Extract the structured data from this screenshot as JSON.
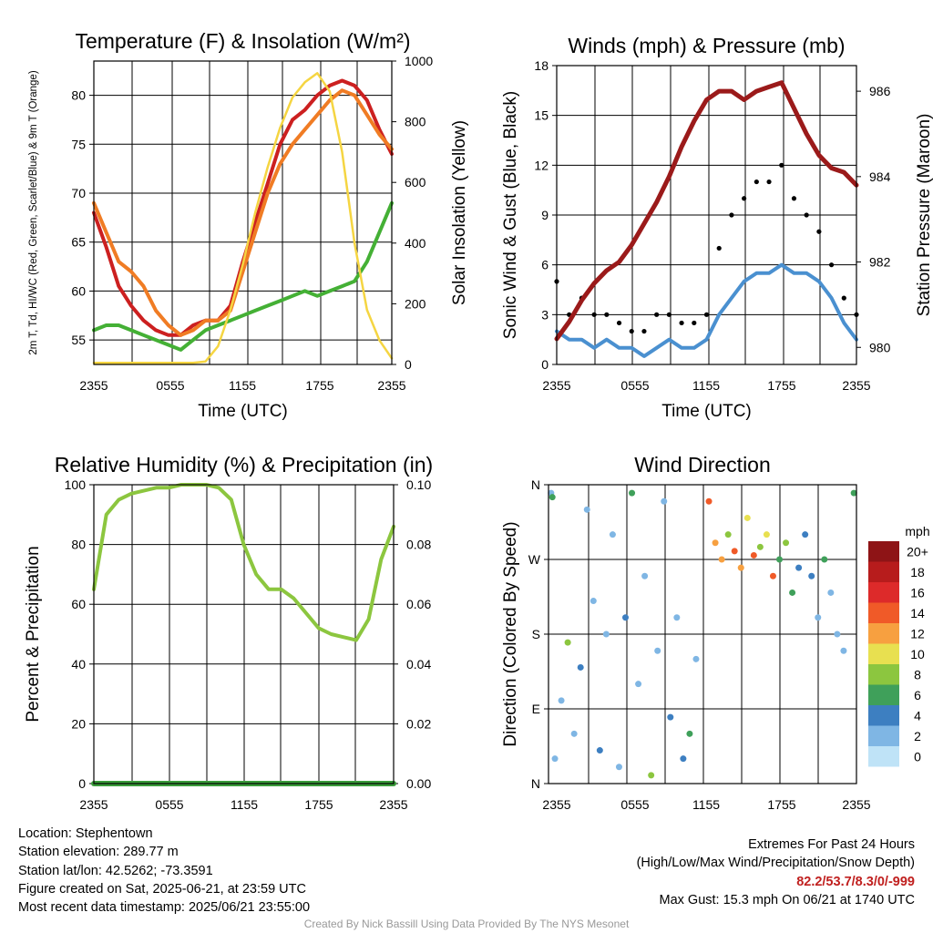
{
  "chart_data": [
    {
      "type": "line",
      "title": "Temperature (F) & Insolation (W/m²)",
      "xlabel": "Time (UTC)",
      "ylabel": "2m T, Td, HI/WC (Red, Green, Scarlet/Blue) & 9m T (Orange)",
      "ylabel_right": "Solar Insolation (Yellow)",
      "x_ticks": [
        "2355",
        "0555",
        "1155",
        "1755",
        "2355"
      ],
      "y_ticks": [
        55,
        60,
        65,
        70,
        75,
        80
      ],
      "y2_ticks": [
        0,
        200,
        400,
        600,
        800,
        1000
      ],
      "ylim": [
        52.5,
        83.5
      ],
      "y2lim": [
        0,
        1000
      ],
      "grid": true,
      "x_hours": [
        0,
        1,
        2,
        3,
        4,
        5,
        6,
        7,
        8,
        9,
        10,
        11,
        12,
        13,
        14,
        15,
        16,
        17,
        18,
        19,
        20,
        21,
        22,
        23,
        24
      ],
      "series": [
        {
          "name": "2m T",
          "color": "#cc2020",
          "axis": "left",
          "values": [
            68,
            64.5,
            60.5,
            58.5,
            57,
            56,
            55.5,
            55.5,
            56.5,
            57,
            57,
            58.5,
            63,
            67,
            71,
            75,
            77.5,
            78.5,
            80,
            81,
            81.5,
            81,
            79.5,
            76.5,
            74
          ]
        },
        {
          "name": "9m T",
          "color": "#f07c24",
          "axis": "left",
          "values": [
            69,
            66,
            63,
            62,
            60.5,
            58,
            56.5,
            55.5,
            56,
            57,
            57,
            58,
            62,
            66,
            70,
            73,
            75,
            76.5,
            78,
            79.5,
            80.5,
            80,
            78,
            76,
            74.5
          ]
        },
        {
          "name": "Td",
          "color": "#44b035",
          "axis": "left",
          "values": [
            56,
            56.5,
            56.5,
            56,
            55.5,
            55,
            54.5,
            54,
            55,
            56,
            56.5,
            57,
            57.5,
            58,
            58.5,
            59,
            59.5,
            60,
            59.5,
            60,
            60.5,
            61,
            63,
            66,
            69
          ]
        },
        {
          "name": "Solar Insolation",
          "color": "#f5d542",
          "axis": "right",
          "values": [
            5,
            5,
            5,
            5,
            5,
            5,
            5,
            5,
            5,
            10,
            60,
            180,
            330,
            500,
            650,
            780,
            880,
            930,
            960,
            900,
            700,
            400,
            180,
            80,
            20
          ]
        }
      ]
    },
    {
      "type": "line",
      "title": "Winds (mph) & Pressure (mb)",
      "xlabel": "Time (UTC)",
      "ylabel": "Sonic Wind & Gust (Blue, Black)",
      "ylabel_right": "Station Pressure (Maroon)",
      "x_ticks": [
        "2355",
        "0555",
        "1155",
        "1755",
        "2355"
      ],
      "y_ticks": [
        0,
        3,
        6,
        9,
        12,
        15,
        18
      ],
      "y2_ticks": [
        980,
        982,
        984,
        986
      ],
      "ylim": [
        0,
        18
      ],
      "y2lim": [
        979.6,
        986.6
      ],
      "grid": true,
      "x_hours": [
        0,
        1,
        2,
        3,
        4,
        5,
        6,
        7,
        8,
        9,
        10,
        11,
        12,
        13,
        14,
        15,
        16,
        17,
        18,
        19,
        20,
        21,
        22,
        23,
        24
      ],
      "series": [
        {
          "name": "Station Pressure",
          "color": "#9b1a1a",
          "axis": "right",
          "values": [
            980.2,
            980.6,
            981.1,
            981.5,
            981.8,
            982.0,
            982.4,
            982.9,
            983.4,
            984.0,
            984.7,
            985.3,
            985.8,
            986.0,
            986.0,
            985.8,
            986.0,
            986.1,
            986.2,
            985.6,
            985.0,
            984.5,
            984.2,
            984.1,
            983.8
          ]
        },
        {
          "name": "Sonic Wind",
          "color": "#4a90d0",
          "axis": "left",
          "values": [
            2,
            1.5,
            1.5,
            1.0,
            1.5,
            1.0,
            1.0,
            0.5,
            1.0,
            1.5,
            1.0,
            1.0,
            1.5,
            3,
            4,
            5,
            5.5,
            5.5,
            6,
            5.5,
            5.5,
            5,
            4,
            2.5,
            1.5
          ]
        },
        {
          "name": "Gust",
          "color": "#000000",
          "axis": "left",
          "values": [
            5,
            3,
            4,
            3,
            3,
            2.5,
            2,
            2,
            3,
            3,
            2.5,
            2.5,
            3,
            7,
            9,
            10,
            11,
            11,
            12,
            10,
            9,
            8,
            6,
            4,
            3
          ]
        }
      ]
    },
    {
      "type": "line",
      "title": "Relative Humidity (%) & Precipitation (in)",
      "xlabel": "",
      "ylabel": "Percent & Precipitation",
      "x_ticks": [
        "2355",
        "0555",
        "1155",
        "1755",
        "2355"
      ],
      "y_ticks": [
        0,
        20,
        40,
        60,
        80,
        100
      ],
      "y2_ticks": [
        "0.00",
        "0.02",
        "0.04",
        "0.06",
        "0.08",
        "0.10"
      ],
      "ylim": [
        0,
        100
      ],
      "y2lim": [
        0,
        0.1
      ],
      "grid": true,
      "x_hours": [
        0,
        1,
        2,
        3,
        4,
        5,
        6,
        7,
        8,
        9,
        10,
        11,
        12,
        13,
        14,
        15,
        16,
        17,
        18,
        19,
        20,
        21,
        22,
        23,
        24
      ],
      "series": [
        {
          "name": "Relative Humidity",
          "color": "#8cc63f",
          "axis": "left",
          "values": [
            65,
            90,
            95,
            97,
            98,
            99,
            99,
            100,
            100,
            100,
            99,
            95,
            80,
            70,
            65,
            65,
            62,
            57,
            52,
            50,
            49,
            48,
            55,
            75,
            86
          ]
        },
        {
          "name": "Precipitation",
          "color": "#3a9b3a",
          "axis": "right",
          "values": [
            0,
            0,
            0,
            0,
            0,
            0,
            0,
            0,
            0,
            0,
            0,
            0,
            0,
            0,
            0,
            0,
            0,
            0,
            0,
            0,
            0,
            0,
            0,
            0,
            0
          ]
        }
      ]
    },
    {
      "type": "scatter",
      "title": "Wind Direction",
      "ylabel": "Direction (Colored By Speed)",
      "x_ticks": [
        "2355",
        "0555",
        "1155",
        "1755",
        "2355"
      ],
      "y_ticks": [
        "N",
        "E",
        "S",
        "W",
        "N"
      ],
      "ylim": [
        0,
        360
      ],
      "grid": true,
      "points": [
        [
          0.2,
          350,
          1
        ],
        [
          0.3,
          345,
          3
        ],
        [
          0.5,
          30,
          1
        ],
        [
          1.0,
          100,
          1
        ],
        [
          1.5,
          170,
          4
        ],
        [
          2.0,
          60,
          1
        ],
        [
          2.5,
          140,
          2
        ],
        [
          3.0,
          330,
          1
        ],
        [
          3.5,
          220,
          1
        ],
        [
          4.0,
          40,
          2
        ],
        [
          4.5,
          180,
          1
        ],
        [
          5.0,
          300,
          1
        ],
        [
          5.5,
          20,
          1
        ],
        [
          6.0,
          200,
          2
        ],
        [
          6.5,
          350,
          3
        ],
        [
          7.0,
          120,
          1
        ],
        [
          7.5,
          250,
          1
        ],
        [
          8.0,
          10,
          4
        ],
        [
          8.5,
          160,
          1
        ],
        [
          9.0,
          340,
          1
        ],
        [
          9.5,
          80,
          2
        ],
        [
          10.0,
          200,
          1
        ],
        [
          10.5,
          30,
          2
        ],
        [
          11.0,
          60,
          3
        ],
        [
          11.5,
          150,
          1
        ],
        [
          12.5,
          340,
          7
        ],
        [
          13.0,
          290,
          6
        ],
        [
          13.5,
          270,
          6
        ],
        [
          14.0,
          300,
          4
        ],
        [
          14.5,
          280,
          7
        ],
        [
          15.0,
          260,
          6
        ],
        [
          15.5,
          320,
          5
        ],
        [
          16.0,
          275,
          7
        ],
        [
          16.5,
          285,
          4
        ],
        [
          17.0,
          300,
          5
        ],
        [
          17.5,
          250,
          7
        ],
        [
          18.0,
          270,
          3
        ],
        [
          18.5,
          290,
          4
        ],
        [
          19.0,
          230,
          3
        ],
        [
          19.5,
          260,
          2
        ],
        [
          20.0,
          300,
          2
        ],
        [
          20.5,
          250,
          2
        ],
        [
          21.0,
          200,
          1
        ],
        [
          21.5,
          270,
          3
        ],
        [
          22.0,
          230,
          1
        ],
        [
          22.5,
          180,
          1
        ],
        [
          23.0,
          160,
          1
        ],
        [
          23.8,
          350,
          3
        ]
      ],
      "colorbar": {
        "title": "mph",
        "labels": [
          "20+",
          "18",
          "16",
          "14",
          "12",
          "10",
          "8",
          "6",
          "4",
          "2",
          "0"
        ],
        "colors": [
          "#8e1416",
          "#b71c1c",
          "#dd2a2a",
          "#f05a28",
          "#f7a040",
          "#e8e050",
          "#8cc63f",
          "#3fa05a",
          "#3d7fc1",
          "#7fb6e4",
          "#bfe3f7"
        ]
      }
    }
  ],
  "info": {
    "location": "Location: Stephentown",
    "elevation": "Station elevation: 289.77 m",
    "latlon": "Station lat/lon: 42.5262; -73.3591",
    "created": "Figure created on Sat, 2025-06-21, at 23:59 UTC",
    "recent": "Most recent data timestamp: 2025/06/21 23:55:00"
  },
  "extremes": {
    "title": "Extremes For Past 24 Hours",
    "subtitle": "(High/Low/Max Wind/Precipitation/Snow Depth)",
    "values": "82.2/53.7/8.3/0/-999",
    "gust": "Max Gust: 15.3 mph On 06/21 at 1740 UTC"
  },
  "credit": "Created By Nick Bassill Using Data Provided By The NYS Mesonet"
}
